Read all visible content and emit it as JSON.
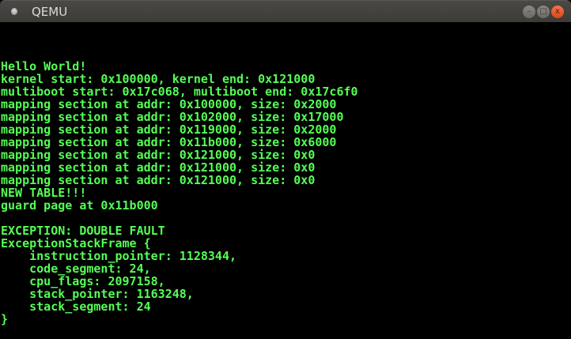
{
  "window": {
    "title": "QEMU",
    "minimize_label": "–",
    "maximize_label": "□",
    "close_label": "x"
  },
  "console": {
    "text_color": "#55ff55",
    "start_row": 3,
    "lines": [
      "Hello World!",
      "kernel start: 0x100000, kernel end: 0x121000",
      "multiboot start: 0x17c068, multiboot end: 0x17c6f0",
      "mapping section at addr: 0x100000, size: 0x2000",
      "mapping section at addr: 0x102000, size: 0x17000",
      "mapping section at addr: 0x119000, size: 0x2000",
      "mapping section at addr: 0x11b000, size: 0x6000",
      "mapping section at addr: 0x121000, size: 0x0",
      "mapping section at addr: 0x121000, size: 0x0",
      "mapping section at addr: 0x121000, size: 0x0",
      "NEW TABLE!!!",
      "guard page at 0x11b000",
      "",
      "EXCEPTION: DOUBLE FAULT",
      "ExceptionStackFrame {",
      "    instruction_pointer: 1128344,",
      "    code_segment: 24,",
      "    cpu_flags: 2097158,",
      "    stack_pointer: 1163248,",
      "    stack_segment: 24",
      "}"
    ]
  }
}
